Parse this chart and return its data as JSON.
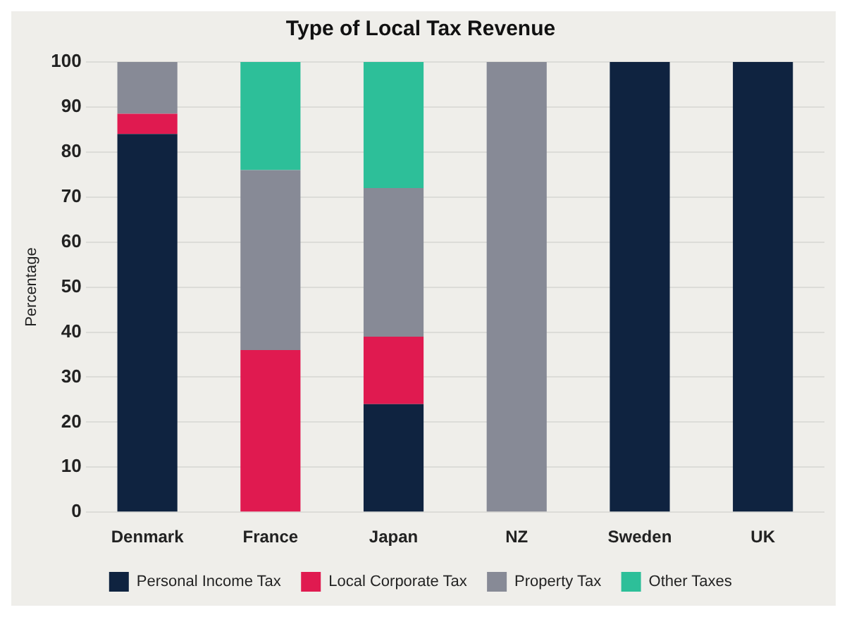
{
  "chart_data": {
    "type": "bar",
    "title": "Type of Local Tax Revenue",
    "ylabel": "Percentage",
    "categories": [
      "Denmark",
      "France",
      "Japan",
      "NZ",
      "Sweden",
      "UK"
    ],
    "stacked": true,
    "ylim": [
      0,
      100
    ],
    "yticks": [
      0,
      10,
      20,
      30,
      40,
      50,
      60,
      70,
      80,
      90,
      100
    ],
    "grid": "y",
    "legend": "bottom",
    "series": [
      {
        "name": "Personal Income Tax",
        "color": "#0f2340",
        "values": [
          84,
          0,
          24,
          0,
          100,
          100
        ]
      },
      {
        "name": "Local Corporate Tax",
        "color": "#e01a50",
        "values": [
          4.5,
          36,
          15,
          0,
          0,
          0
        ]
      },
      {
        "name": "Property Tax",
        "color": "#878a96",
        "values": [
          11.5,
          40,
          33,
          100,
          0,
          0
        ]
      },
      {
        "name": "Other Taxes",
        "color": "#2dbf99",
        "values": [
          0,
          24,
          28,
          0,
          0,
          0
        ]
      }
    ]
  }
}
